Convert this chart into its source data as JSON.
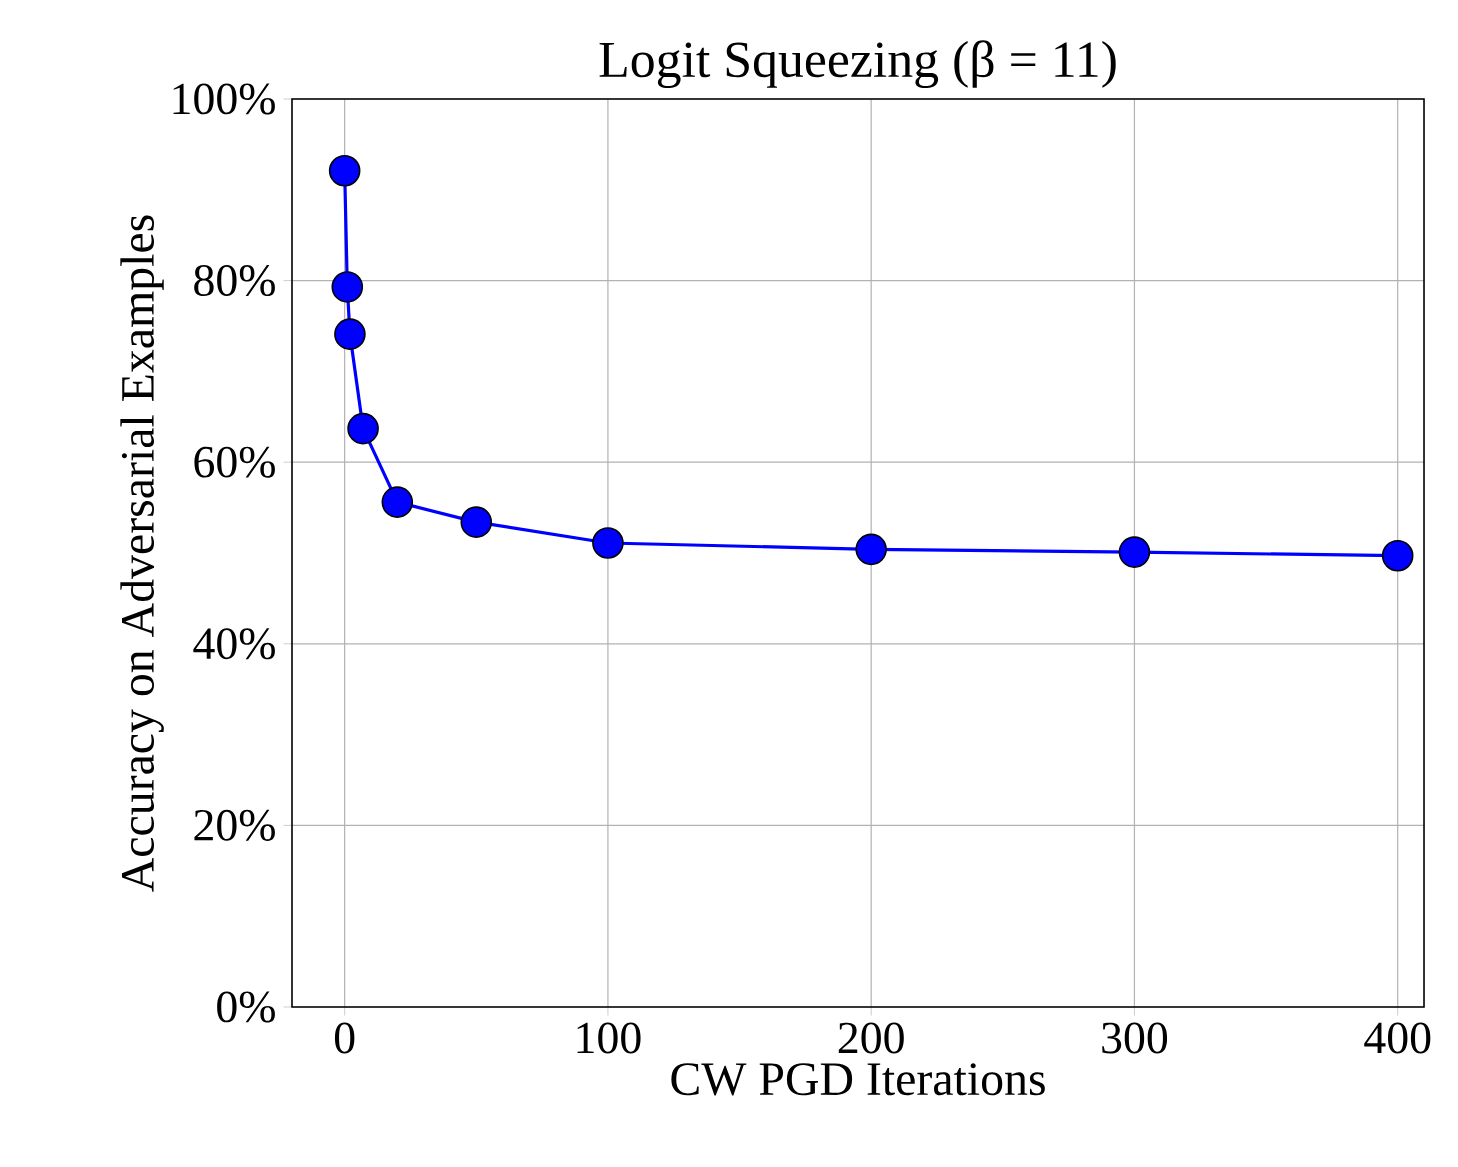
{
  "chart_data": {
    "type": "line",
    "title": "Logit Squeezing (β = 11)",
    "xlabel": "CW PGD Iterations",
    "ylabel": "Accuracy on Adversarial Examples",
    "x": [
      0,
      1,
      2,
      7,
      20,
      50,
      100,
      200,
      300,
      400
    ],
    "values": [
      92.1,
      79.3,
      74.1,
      63.7,
      55.6,
      53.4,
      51.1,
      50.4,
      50.1,
      49.7
    ],
    "color": "#0000ff",
    "marker": "circle",
    "line_style": "solid",
    "grid": true,
    "xlim": [
      -20,
      410
    ],
    "ylim": [
      0,
      100
    ],
    "xticks": [
      0,
      100,
      200,
      300,
      400
    ],
    "yticks": [
      {
        "value": 0,
        "label": "0%"
      },
      {
        "value": 20,
        "label": "20%"
      },
      {
        "value": 40,
        "label": "40%"
      },
      {
        "value": 60,
        "label": "60%"
      },
      {
        "value": 80,
        "label": "80%"
      },
      {
        "value": 100,
        "label": "100%"
      }
    ]
  }
}
